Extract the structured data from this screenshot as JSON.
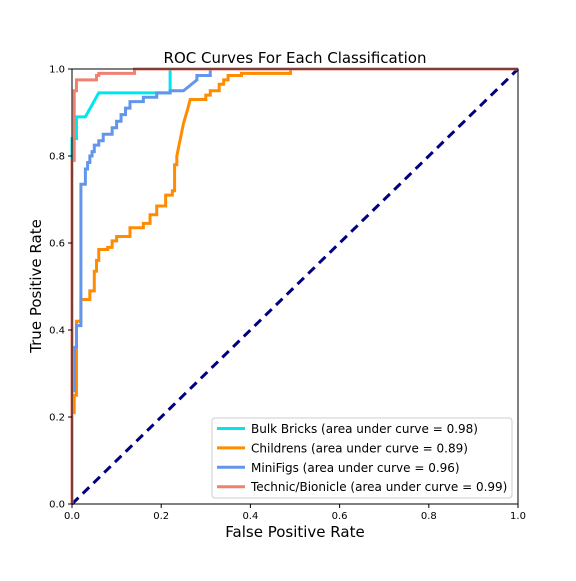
{
  "chart_data": {
    "type": "line",
    "title": "ROC Curves For Each Classification",
    "xlabel": "False Positive Rate",
    "ylabel": "True Positive Rate",
    "xlim": [
      0,
      1
    ],
    "ylim": [
      0,
      1
    ],
    "x_ticks": [
      "0.0",
      "0.2",
      "0.4",
      "0.6",
      "0.8",
      "1.0"
    ],
    "y_ticks": [
      "0.0",
      "0.2",
      "0.4",
      "0.6",
      "0.8",
      "1.0"
    ],
    "grid": false,
    "legend_position": "lower-right",
    "chance_line": {
      "color": "#000080",
      "style": "dashed",
      "x": [
        0,
        1
      ],
      "y": [
        0,
        1
      ]
    },
    "series": [
      {
        "name": "Bulk Bricks (area under curve = 0.98)",
        "color": "#00e5ee",
        "x": [
          0.0,
          0.0,
          0.01,
          0.01,
          0.02,
          0.03,
          0.06,
          0.06,
          0.22,
          0.22,
          1.0
        ],
        "y": [
          0.0,
          0.84,
          0.84,
          0.89,
          0.89,
          0.89,
          0.945,
          0.945,
          0.945,
          1.0,
          1.0
        ]
      },
      {
        "name": "Childrens (area under curve = 0.89)",
        "color": "#ff8c00",
        "x": [
          0.0,
          0.0,
          0.005,
          0.005,
          0.01,
          0.01,
          0.02,
          0.02,
          0.04,
          0.04,
          0.05,
          0.05,
          0.055,
          0.055,
          0.06,
          0.06,
          0.08,
          0.08,
          0.09,
          0.09,
          0.1,
          0.1,
          0.13,
          0.13,
          0.16,
          0.16,
          0.175,
          0.175,
          0.19,
          0.19,
          0.21,
          0.21,
          0.225,
          0.225,
          0.23,
          0.23,
          0.235,
          0.235,
          0.25,
          0.26,
          0.265,
          0.27,
          0.3,
          0.3,
          0.31,
          0.31,
          0.33,
          0.33,
          0.34,
          0.34,
          0.35,
          0.35,
          0.38,
          0.38,
          0.42,
          0.49,
          0.49,
          1.0
        ],
        "y": [
          0.0,
          0.21,
          0.21,
          0.25,
          0.25,
          0.42,
          0.42,
          0.47,
          0.47,
          0.49,
          0.49,
          0.535,
          0.535,
          0.56,
          0.56,
          0.585,
          0.585,
          0.59,
          0.59,
          0.605,
          0.605,
          0.615,
          0.615,
          0.635,
          0.635,
          0.645,
          0.645,
          0.665,
          0.665,
          0.685,
          0.685,
          0.71,
          0.71,
          0.72,
          0.72,
          0.78,
          0.78,
          0.8,
          0.875,
          0.91,
          0.93,
          0.93,
          0.93,
          0.94,
          0.94,
          0.95,
          0.95,
          0.965,
          0.965,
          0.975,
          0.975,
          0.985,
          0.985,
          0.99,
          0.99,
          0.99,
          1.0,
          1.0
        ]
      },
      {
        "name": "MiniFigs (area under curve = 0.96)",
        "color": "#6495ed",
        "x": [
          0.0,
          0.0,
          0.005,
          0.005,
          0.01,
          0.01,
          0.02,
          0.02,
          0.02,
          0.03,
          0.03,
          0.035,
          0.035,
          0.04,
          0.04,
          0.045,
          0.045,
          0.05,
          0.05,
          0.06,
          0.06,
          0.07,
          0.07,
          0.09,
          0.09,
          0.1,
          0.1,
          0.11,
          0.11,
          0.12,
          0.12,
          0.13,
          0.13,
          0.16,
          0.16,
          0.19,
          0.19,
          0.22,
          0.22,
          0.25,
          0.28,
          0.28,
          0.31,
          0.31,
          1.0
        ],
        "y": [
          0.0,
          0.26,
          0.26,
          0.36,
          0.36,
          0.41,
          0.41,
          0.44,
          0.735,
          0.735,
          0.77,
          0.77,
          0.785,
          0.785,
          0.8,
          0.8,
          0.81,
          0.81,
          0.825,
          0.825,
          0.835,
          0.835,
          0.85,
          0.85,
          0.865,
          0.865,
          0.88,
          0.88,
          0.895,
          0.895,
          0.91,
          0.91,
          0.925,
          0.925,
          0.935,
          0.935,
          0.945,
          0.945,
          0.95,
          0.95,
          0.975,
          0.985,
          0.985,
          1.0,
          1.0
        ]
      },
      {
        "name": "Technic/Bionicle (area under curve = 0.99)",
        "color": "#f08070",
        "x": [
          0.0,
          0.0,
          0.005,
          0.005,
          0.01,
          0.01,
          0.02,
          0.055,
          0.055,
          0.06,
          0.06,
          0.14,
          0.14,
          1.0
        ],
        "y": [
          0.0,
          0.79,
          0.79,
          0.95,
          0.95,
          0.975,
          0.975,
          0.975,
          0.985,
          0.985,
          0.99,
          0.99,
          1.0,
          1.0
        ]
      }
    ]
  }
}
